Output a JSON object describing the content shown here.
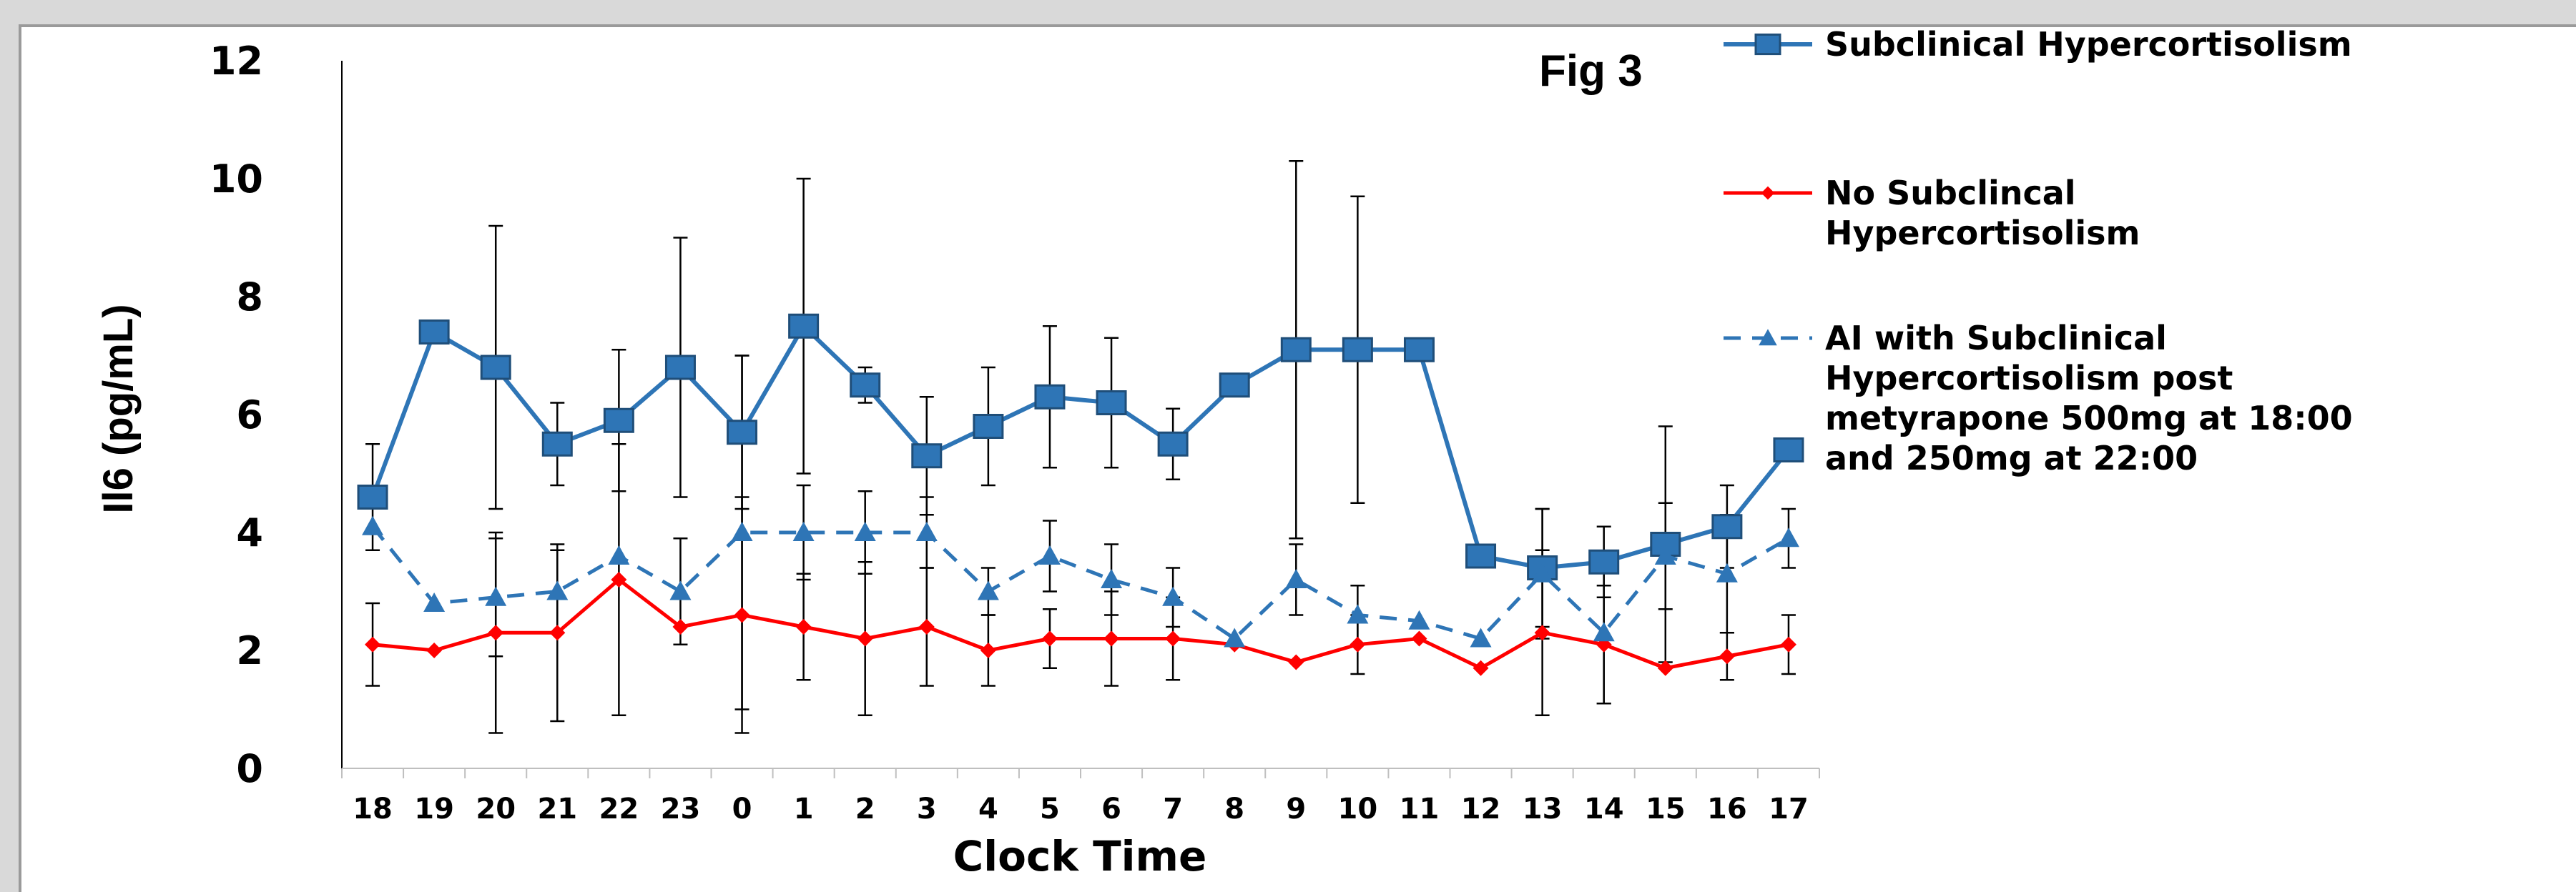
{
  "chart_data": {
    "type": "line",
    "title": "Fig 3",
    "xlabel": "Clock Time",
    "ylabel": "Il6 (pg/mL)",
    "ylim": [
      0,
      12
    ],
    "yticks": [
      "0",
      "2",
      "4",
      "6",
      "8",
      "10",
      "12"
    ],
    "categories": [
      "18",
      "19",
      "20",
      "21",
      "22",
      "23",
      "0",
      "1",
      "2",
      "3",
      "4",
      "5",
      "6",
      "7",
      "8",
      "9",
      "10",
      "11",
      "12",
      "13",
      "14",
      "15",
      "16",
      "17"
    ],
    "grid": false,
    "legend_position": "right",
    "series": [
      {
        "name": "Subclinical Hypercortisolism",
        "color": "#2e75b6",
        "marker": "square",
        "dash": "solid",
        "values": [
          4.6,
          7.4,
          6.8,
          5.5,
          5.9,
          6.8,
          5.7,
          7.5,
          6.5,
          5.3,
          5.8,
          6.3,
          6.2,
          5.5,
          6.5,
          7.1,
          7.1,
          7.1,
          3.6,
          3.4,
          3.5,
          3.8,
          4.1,
          5.4
        ],
        "err": [
          0.9,
          0,
          2.4,
          0.7,
          1.2,
          2.2,
          1.3,
          2.5,
          0.3,
          1.0,
          1.0,
          1.2,
          1.1,
          0.6,
          0,
          3.2,
          2.6,
          0,
          0,
          1.0,
          0.6,
          2.0,
          0.7,
          0
        ]
      },
      {
        "name": "No Subclincal Hypercortisolism",
        "color": "#ff0000",
        "marker": "diamond",
        "dash": "solid",
        "values": [
          2.1,
          2.0,
          2.3,
          2.3,
          3.2,
          2.4,
          2.6,
          2.4,
          2.2,
          2.4,
          2.0,
          2.2,
          2.2,
          2.2,
          2.1,
          1.8,
          2.1,
          2.2,
          1.7,
          2.3,
          2.1,
          1.7,
          1.9,
          2.1
        ],
        "err": [
          0.7,
          0,
          1.7,
          1.5,
          2.3,
          0,
          2.0,
          0.9,
          1.3,
          1.0,
          0.6,
          0.5,
          0.8,
          0.7,
          0,
          0,
          0.5,
          0,
          0,
          1.4,
          1.0,
          0,
          0.4,
          0.5
        ]
      },
      {
        "name": "AI with Subclinical Hypercortisolism post metyrapone 500mg at 18:00 and 250mg at 22:00",
        "color": "#2e75b6",
        "marker": "triangle",
        "dash": "dashed",
        "values": [
          4.1,
          2.8,
          2.9,
          3.0,
          3.6,
          3.0,
          4.0,
          4.0,
          4.0,
          4.0,
          3.0,
          3.6,
          3.2,
          2.9,
          2.2,
          3.2,
          2.6,
          2.5,
          2.2,
          3.3,
          2.3,
          3.6,
          3.3,
          3.9
        ],
        "err": [
          0,
          0,
          1.0,
          0.7,
          0,
          0.9,
          3.0,
          0.8,
          0.7,
          0.6,
          0.4,
          0.6,
          0.6,
          0.5,
          0,
          0.6,
          0.5,
          0,
          0,
          1.1,
          1.2,
          0.9,
          1.0,
          0.5
        ]
      }
    ],
    "legend_lines": [
      [
        "Subclinical Hypercortisolism"
      ],
      [
        "No Subclincal",
        "Hypercortisolism"
      ],
      [
        "AI with Subclinical",
        "Hypercortisolism post",
        "metyrapone 500mg at 18:00",
        "and 250mg at 22:00"
      ]
    ]
  }
}
